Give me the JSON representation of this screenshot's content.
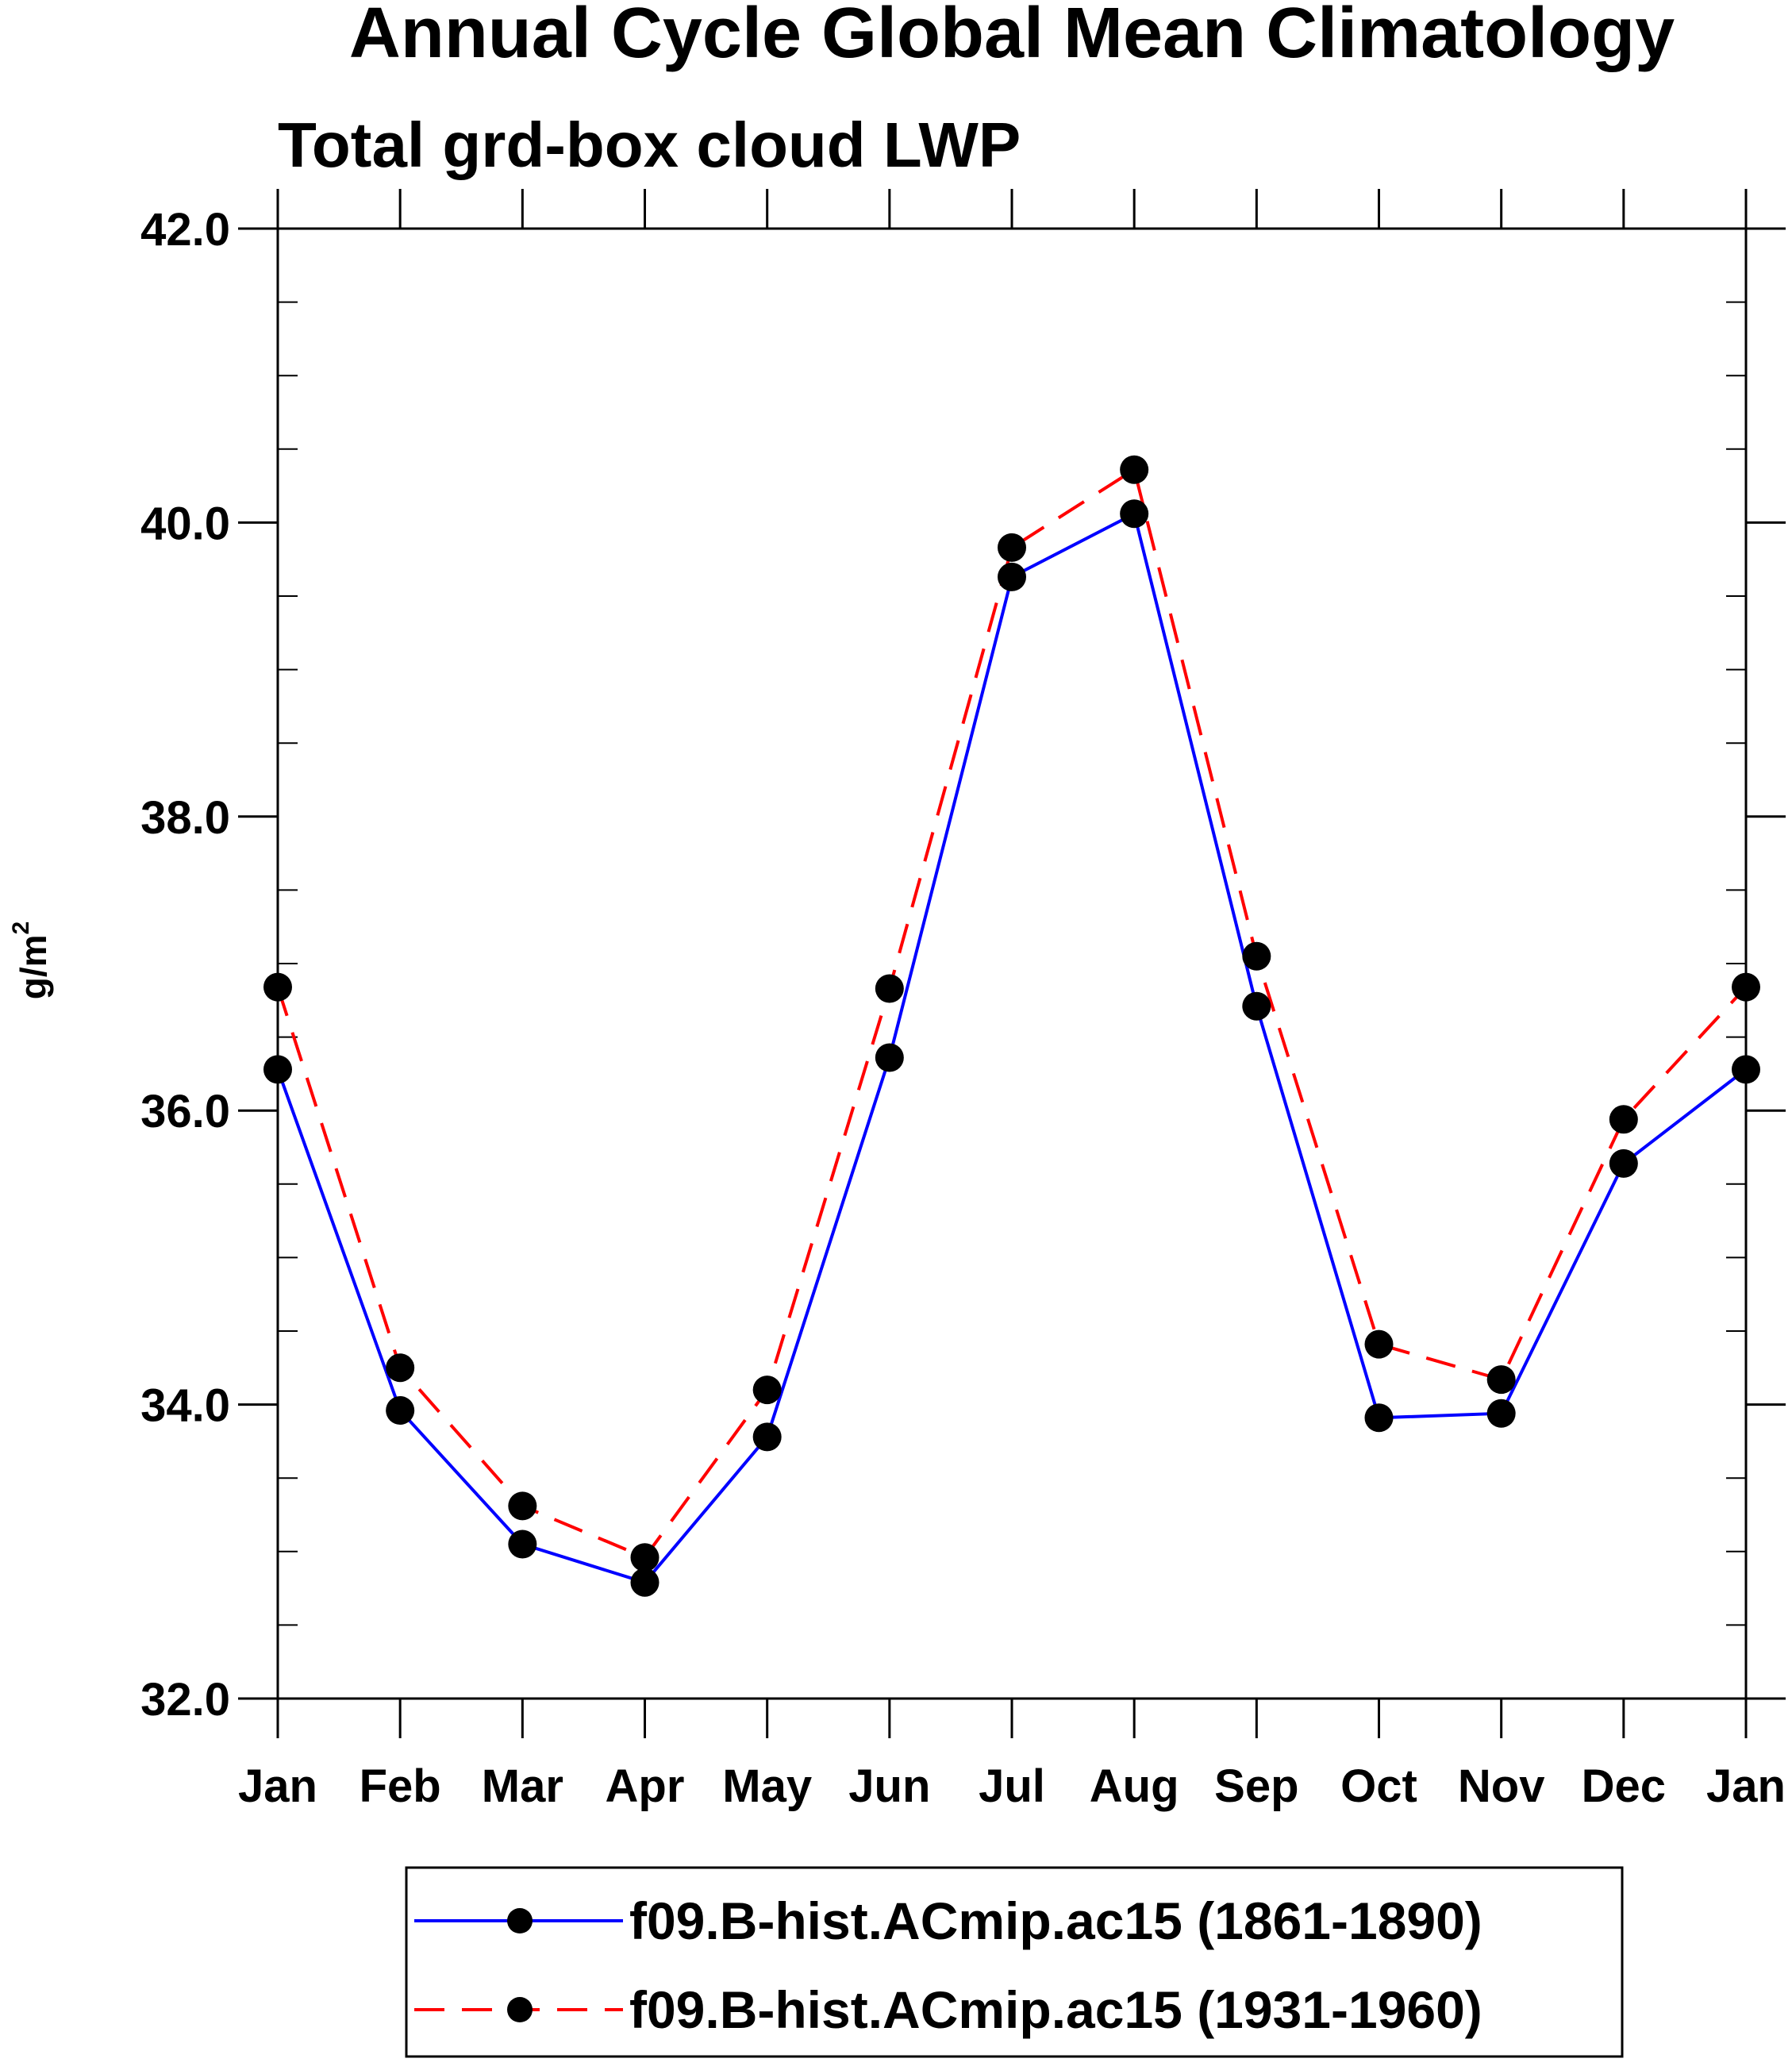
{
  "chart_data": {
    "type": "line",
    "title": "Annual Cycle Global Mean Climatology",
    "subtitle": "Total grd-box cloud LWP",
    "ylabel_base": "g/m",
    "ylabel_sup": "2",
    "categories": [
      "Jan",
      "Feb",
      "Mar",
      "Apr",
      "May",
      "Jun",
      "Jul",
      "Aug",
      "Sep",
      "Oct",
      "Nov",
      "Dec",
      "Jan"
    ],
    "ylim": [
      32.0,
      42.0
    ],
    "yticks": [
      "32.0",
      "34.0",
      "36.0",
      "38.0",
      "40.0",
      "42.0"
    ],
    "ytick_values": [
      32,
      34,
      36,
      38,
      40,
      42
    ],
    "yminor_step": 0.5,
    "grid": false,
    "legend_position": "bottom",
    "series": [
      {
        "name": "f09.B-hist.ACmip.ac15 (1861-1890)",
        "color": "#0000ff",
        "dash": "solid",
        "marker": "filled-circle",
        "values": [
          36.28,
          33.96,
          33.05,
          32.79,
          33.78,
          36.36,
          39.63,
          40.06,
          36.71,
          33.91,
          33.94,
          35.64,
          36.28
        ]
      },
      {
        "name": "f09.B-hist.ACmip.ac15 (1931-1960)",
        "color": "#ff0000",
        "dash": "dashed",
        "marker": "filled-circle",
        "values": [
          36.84,
          34.25,
          33.31,
          32.96,
          34.1,
          36.83,
          39.83,
          40.36,
          37.05,
          34.41,
          34.17,
          35.94,
          36.84
        ]
      }
    ]
  }
}
